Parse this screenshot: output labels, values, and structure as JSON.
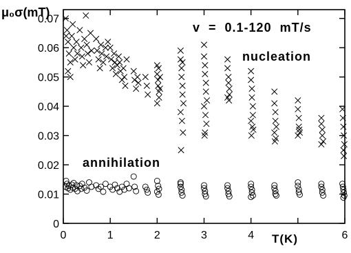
{
  "chart_data": {
    "type": "scatter",
    "title": "",
    "ylabel": "μ₀σ(mT)",
    "xlabel": "T(K)",
    "xlim": [
      0,
      6
    ],
    "ylim": [
      0,
      0.073
    ],
    "xticks": [
      0,
      1,
      2,
      3,
      4,
      6
    ],
    "yticks": [
      0,
      0.01,
      0.02,
      0.03,
      0.04,
      0.05,
      0.06,
      0.07
    ],
    "xtick_labels": [
      "0",
      "1",
      "2",
      "3",
      "4",
      "6"
    ],
    "ytick_labels": [
      "0",
      "0.01",
      "0.02",
      "0.03",
      "0.04",
      "0.05",
      "0.06",
      "0.07"
    ],
    "grid": false,
    "annotations": {
      "sweep_rate": "v  =  0.1-120  mT/s",
      "nucleation": "nucleation",
      "annihilation": "annihilation"
    },
    "series": [
      {
        "marker": "x",
        "color": "#000000",
        "points": [
          [
            0.05,
            0.07
          ],
          [
            0.08,
            0.066
          ],
          [
            0.1,
            0.062
          ],
          [
            0.12,
            0.058
          ],
          [
            0.15,
            0.055
          ],
          [
            0.1,
            0.052
          ],
          [
            0.18,
            0.064
          ],
          [
            0.2,
            0.068
          ],
          [
            0.22,
            0.06
          ],
          [
            0.25,
            0.056
          ],
          [
            0.15,
            0.05
          ],
          [
            0.28,
            0.062
          ],
          [
            0.3,
            0.058
          ],
          [
            0.06,
            0.064
          ],
          [
            0.35,
            0.066
          ],
          [
            0.38,
            0.06
          ],
          [
            0.4,
            0.057
          ],
          [
            0.42,
            0.054
          ],
          [
            0.45,
            0.063
          ],
          [
            0.48,
            0.071
          ],
          [
            0.5,
            0.061
          ],
          [
            0.52,
            0.058
          ],
          [
            0.55,
            0.055
          ],
          [
            0.58,
            0.065
          ],
          [
            0.6,
            0.059
          ],
          [
            0.7,
            0.063
          ],
          [
            0.72,
            0.059
          ],
          [
            0.75,
            0.056
          ],
          [
            0.78,
            0.053
          ],
          [
            0.8,
            0.061
          ],
          [
            0.82,
            0.058
          ],
          [
            0.85,
            0.055
          ],
          [
            0.9,
            0.06
          ],
          [
            0.92,
            0.057
          ],
          [
            0.95,
            0.062
          ],
          [
            1.0,
            0.06
          ],
          [
            1.02,
            0.056
          ],
          [
            1.05,
            0.053
          ],
          [
            1.08,
            0.058
          ],
          [
            1.1,
            0.055
          ],
          [
            1.12,
            0.051
          ],
          [
            1.15,
            0.054
          ],
          [
            1.18,
            0.057
          ],
          [
            1.2,
            0.055
          ],
          [
            1.22,
            0.052
          ],
          [
            1.25,
            0.049
          ],
          [
            1.28,
            0.053
          ],
          [
            1.3,
            0.05
          ],
          [
            1.32,
            0.047
          ],
          [
            1.35,
            0.056
          ],
          [
            1.5,
            0.052
          ],
          [
            1.52,
            0.049
          ],
          [
            1.55,
            0.046
          ],
          [
            1.58,
            0.05
          ],
          [
            1.6,
            0.048
          ],
          [
            1.75,
            0.05
          ],
          [
            1.78,
            0.047
          ],
          [
            1.8,
            0.044
          ],
          [
            2.0,
            0.054
          ],
          [
            2.0,
            0.051
          ],
          [
            2.02,
            0.049
          ],
          [
            2.02,
            0.047
          ],
          [
            2.04,
            0.045
          ],
          [
            2.04,
            0.043
          ],
          [
            2.06,
            0.05
          ],
          [
            2.06,
            0.046
          ],
          [
            2.0,
            0.041
          ],
          [
            2.03,
            0.053
          ],
          [
            2.5,
            0.059
          ],
          [
            2.5,
            0.056
          ],
          [
            2.52,
            0.053
          ],
          [
            2.52,
            0.05
          ],
          [
            2.54,
            0.047
          ],
          [
            2.54,
            0.044
          ],
          [
            2.56,
            0.041
          ],
          [
            2.5,
            0.038
          ],
          [
            2.53,
            0.035
          ],
          [
            2.55,
            0.031
          ],
          [
            2.51,
            0.025
          ],
          [
            2.54,
            0.055
          ],
          [
            3.0,
            0.061
          ],
          [
            3.0,
            0.057
          ],
          [
            3.02,
            0.054
          ],
          [
            3.02,
            0.051
          ],
          [
            3.04,
            0.048
          ],
          [
            3.04,
            0.045
          ],
          [
            3.06,
            0.042
          ],
          [
            3.0,
            0.04
          ],
          [
            3.03,
            0.037
          ],
          [
            3.05,
            0.034
          ],
          [
            3.02,
            0.031
          ],
          [
            3.01,
            0.03
          ],
          [
            3.5,
            0.056
          ],
          [
            3.5,
            0.053
          ],
          [
            3.52,
            0.05
          ],
          [
            3.52,
            0.048
          ],
          [
            3.54,
            0.046
          ],
          [
            3.54,
            0.044
          ],
          [
            3.5,
            0.043
          ],
          [
            3.53,
            0.042
          ],
          [
            4.0,
            0.052
          ],
          [
            4.0,
            0.049
          ],
          [
            4.02,
            0.046
          ],
          [
            4.02,
            0.043
          ],
          [
            4.04,
            0.04
          ],
          [
            4.04,
            0.037
          ],
          [
            4.0,
            0.035
          ],
          [
            4.03,
            0.033
          ],
          [
            4.05,
            0.032
          ],
          [
            4.01,
            0.03
          ],
          [
            4.5,
            0.045
          ],
          [
            4.5,
            0.041
          ],
          [
            4.52,
            0.038
          ],
          [
            4.52,
            0.035
          ],
          [
            4.54,
            0.033
          ],
          [
            4.5,
            0.031
          ],
          [
            4.53,
            0.029
          ],
          [
            4.51,
            0.028
          ],
          [
            5.0,
            0.042
          ],
          [
            5.0,
            0.039
          ],
          [
            5.02,
            0.036
          ],
          [
            5.02,
            0.033
          ],
          [
            5.04,
            0.031
          ],
          [
            5.0,
            0.03
          ],
          [
            5.03,
            0.032
          ],
          [
            5.5,
            0.036
          ],
          [
            5.5,
            0.034
          ],
          [
            5.52,
            0.032
          ],
          [
            5.52,
            0.03
          ],
          [
            5.54,
            0.028
          ],
          [
            5.5,
            0.027
          ],
          [
            5.95,
            0.039
          ],
          [
            5.96,
            0.036
          ],
          [
            5.97,
            0.033
          ],
          [
            5.98,
            0.03
          ],
          [
            5.99,
            0.027
          ],
          [
            5.97,
            0.025
          ],
          [
            5.98,
            0.023
          ]
        ]
      },
      {
        "marker": "o",
        "color": "#000000",
        "points": [
          [
            0.05,
            0.0125
          ],
          [
            0.08,
            0.0135
          ],
          [
            0.1,
            0.012
          ],
          [
            0.12,
            0.0128
          ],
          [
            0.15,
            0.0115
          ],
          [
            0.18,
            0.0132
          ],
          [
            0.2,
            0.0122
          ],
          [
            0.22,
            0.0138
          ],
          [
            0.25,
            0.0118
          ],
          [
            0.28,
            0.013
          ],
          [
            0.3,
            0.011
          ],
          [
            0.06,
            0.0145
          ],
          [
            0.35,
            0.0128
          ],
          [
            0.38,
            0.0118
          ],
          [
            0.4,
            0.0135
          ],
          [
            0.45,
            0.0122
          ],
          [
            0.5,
            0.0112
          ],
          [
            0.55,
            0.014
          ],
          [
            0.6,
            0.0125
          ],
          [
            0.7,
            0.013
          ],
          [
            0.75,
            0.0118
          ],
          [
            0.8,
            0.0125
          ],
          [
            0.85,
            0.0108
          ],
          [
            0.9,
            0.0135
          ],
          [
            1.0,
            0.0125
          ],
          [
            1.05,
            0.0115
          ],
          [
            1.1,
            0.0132
          ],
          [
            1.15,
            0.012
          ],
          [
            1.2,
            0.0108
          ],
          [
            1.25,
            0.0125
          ],
          [
            1.3,
            0.0115
          ],
          [
            1.35,
            0.0135
          ],
          [
            1.4,
            0.012
          ],
          [
            1.5,
            0.016
          ],
          [
            1.52,
            0.0125
          ],
          [
            1.55,
            0.011
          ],
          [
            1.75,
            0.0125
          ],
          [
            1.78,
            0.0115
          ],
          [
            1.8,
            0.0105
          ],
          [
            2.0,
            0.0145
          ],
          [
            2.02,
            0.0128
          ],
          [
            2.04,
            0.0118
          ],
          [
            2.0,
            0.0108
          ],
          [
            2.03,
            0.0098
          ],
          [
            2.5,
            0.0135
          ],
          [
            2.5,
            0.0125
          ],
          [
            2.52,
            0.0115
          ],
          [
            2.52,
            0.0105
          ],
          [
            2.54,
            0.0095
          ],
          [
            2.5,
            0.014
          ],
          [
            3.0,
            0.013
          ],
          [
            3.0,
            0.012
          ],
          [
            3.02,
            0.011
          ],
          [
            3.02,
            0.01
          ],
          [
            3.04,
            0.0092
          ],
          [
            3.5,
            0.013
          ],
          [
            3.5,
            0.012
          ],
          [
            3.52,
            0.011
          ],
          [
            3.52,
            0.01
          ],
          [
            3.54,
            0.0092
          ],
          [
            4.0,
            0.0135
          ],
          [
            4.0,
            0.0125
          ],
          [
            4.02,
            0.0115
          ],
          [
            4.02,
            0.0105
          ],
          [
            4.04,
            0.0095
          ],
          [
            4.0,
            0.009
          ],
          [
            4.5,
            0.013
          ],
          [
            4.5,
            0.012
          ],
          [
            4.52,
            0.011
          ],
          [
            4.52,
            0.01
          ],
          [
            4.54,
            0.0095
          ],
          [
            5.0,
            0.014
          ],
          [
            5.0,
            0.0128
          ],
          [
            5.02,
            0.0116
          ],
          [
            5.02,
            0.0106
          ],
          [
            5.04,
            0.0098
          ],
          [
            5.5,
            0.0135
          ],
          [
            5.5,
            0.0125
          ],
          [
            5.52,
            0.0115
          ],
          [
            5.52,
            0.0105
          ],
          [
            5.54,
            0.0095
          ],
          [
            5.95,
            0.0135
          ],
          [
            5.96,
            0.0125
          ],
          [
            5.97,
            0.0115
          ],
          [
            5.98,
            0.0105
          ],
          [
            5.99,
            0.0095
          ],
          [
            5.97,
            0.0088
          ]
        ]
      }
    ]
  }
}
